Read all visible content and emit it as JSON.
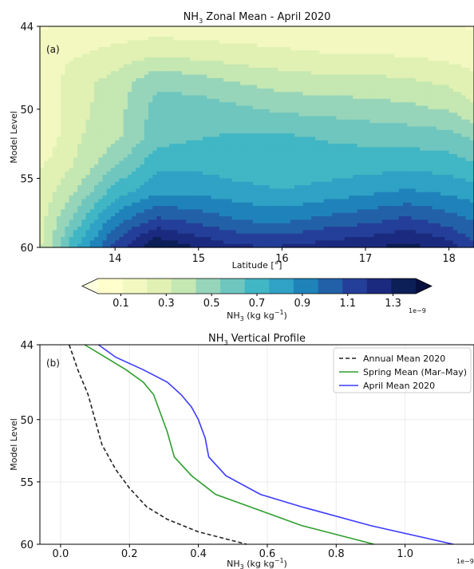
{
  "chart_data": [
    {
      "panel_label": "(a)",
      "type": "heatmap",
      "title": {
        "prefix": "NH",
        "sub": "3",
        "suffix": " Zonal Mean - April 2020"
      },
      "xlabel": "Latitude [°]",
      "ylabel": "Model Level",
      "xlim": [
        13.1,
        18.3
      ],
      "ylim": [
        60,
        44
      ],
      "x_ticks": [
        14,
        15,
        16,
        17,
        18
      ],
      "y_ticks": [
        44,
        50,
        55,
        60
      ],
      "colormap": [
        "#ffffcc",
        "#f2f8c0",
        "#e0f1b3",
        "#c5e7b2",
        "#96d5ba",
        "#6ec6bf",
        "#41b6c4",
        "#2fa2c5",
        "#1f83ba",
        "#2261a8",
        "#243f99",
        "#1b2a7e",
        "#0c1f56"
      ],
      "colorbar": {
        "label": {
          "prefix": "NH",
          "sub": "3",
          "suffix": " (kg kg",
          "sup": "−1",
          "end": ")"
        },
        "ticks": [
          0.1,
          0.3,
          0.5,
          0.7,
          0.9,
          1.1,
          1.3
        ],
        "range": [
          0.0,
          1.4
        ],
        "exponent_label": "1e−9"
      },
      "grid_x": [
        13.1,
        13.5,
        14.0,
        14.5,
        15.0,
        15.5,
        16.0,
        16.5,
        17.0,
        17.5,
        18.0,
        18.3
      ],
      "grid_levels": [
        44,
        46,
        48,
        50,
        52,
        54,
        56,
        58,
        60
      ],
      "values_e9": [
        [
          0.1,
          0.12,
          0.14,
          0.16,
          0.15,
          0.14,
          0.13,
          0.12,
          0.12,
          0.11,
          0.11,
          0.1
        ],
        [
          0.14,
          0.2,
          0.26,
          0.3,
          0.28,
          0.26,
          0.24,
          0.22,
          0.22,
          0.2,
          0.18,
          0.16
        ],
        [
          0.12,
          0.28,
          0.36,
          0.52,
          0.48,
          0.42,
          0.38,
          0.36,
          0.36,
          0.34,
          0.3,
          0.24
        ],
        [
          0.1,
          0.28,
          0.38,
          0.58,
          0.6,
          0.56,
          0.52,
          0.5,
          0.48,
          0.46,
          0.42,
          0.34
        ],
        [
          0.1,
          0.3,
          0.4,
          0.6,
          0.64,
          0.66,
          0.66,
          0.64,
          0.62,
          0.6,
          0.58,
          0.52
        ],
        [
          0.2,
          0.32,
          0.52,
          0.72,
          0.72,
          0.68,
          0.66,
          0.68,
          0.7,
          0.72,
          0.7,
          0.66
        ],
        [
          0.24,
          0.42,
          0.7,
          0.84,
          0.84,
          0.8,
          0.76,
          0.8,
          0.84,
          0.88,
          0.84,
          0.8
        ],
        [
          0.28,
          0.56,
          0.92,
          1.1,
          1.04,
          0.96,
          0.94,
          1.0,
          1.04,
          1.1,
          1.02,
          0.96
        ],
        [
          0.3,
          0.72,
          1.12,
          1.4,
          1.28,
          1.2,
          1.2,
          1.24,
          1.28,
          1.34,
          1.24,
          1.1
        ]
      ]
    },
    {
      "panel_label": "(b)",
      "type": "line",
      "title": {
        "prefix": "NH",
        "sub": "3",
        "suffix": " Vertical Profile"
      },
      "xlabel": {
        "prefix": "NH",
        "sub": "3",
        "suffix": " (kg kg",
        "sup": "−1",
        "end": ")"
      },
      "ylabel": "Model Level",
      "xlim": [
        -0.06,
        1.2
      ],
      "ylim": [
        60,
        44
      ],
      "x_ticks": [
        0.0,
        0.2,
        0.4,
        0.6,
        0.8,
        1.0
      ],
      "y_ticks": [
        44,
        50,
        55,
        60
      ],
      "exponent_label": "1e−9",
      "grid": true,
      "legend_position": "top-right",
      "series": [
        {
          "name": "Annual Mean 2020",
          "color": "#222222",
          "dash": "5,3",
          "x": [
            0.025,
            0.05,
            0.08,
            0.1,
            0.12,
            0.14,
            0.16,
            0.2,
            0.25,
            0.31,
            0.4,
            0.54
          ],
          "y": [
            44,
            46,
            48,
            50,
            52,
            53,
            54,
            55.5,
            57,
            58,
            59,
            60
          ]
        },
        {
          "name": "Spring Mean (Mar–May)",
          "color": "#2e9e2e",
          "dash": "",
          "x": [
            0.07,
            0.13,
            0.19,
            0.24,
            0.27,
            0.29,
            0.31,
            0.33,
            0.38,
            0.45,
            0.55,
            0.7,
            0.91
          ],
          "y": [
            44,
            45,
            46,
            47,
            48,
            49.5,
            51,
            53,
            54.5,
            56,
            57,
            58.5,
            60
          ]
        },
        {
          "name": "April Mean 2020",
          "color": "#3b3bff",
          "dash": "",
          "x": [
            0.11,
            0.16,
            0.24,
            0.31,
            0.35,
            0.38,
            0.4,
            0.42,
            0.43,
            0.48,
            0.58,
            0.7,
            0.9,
            1.14
          ],
          "y": [
            44,
            45,
            46,
            47,
            48,
            49,
            50,
            51.5,
            53,
            54.5,
            56,
            57,
            58.5,
            60
          ]
        }
      ]
    }
  ]
}
